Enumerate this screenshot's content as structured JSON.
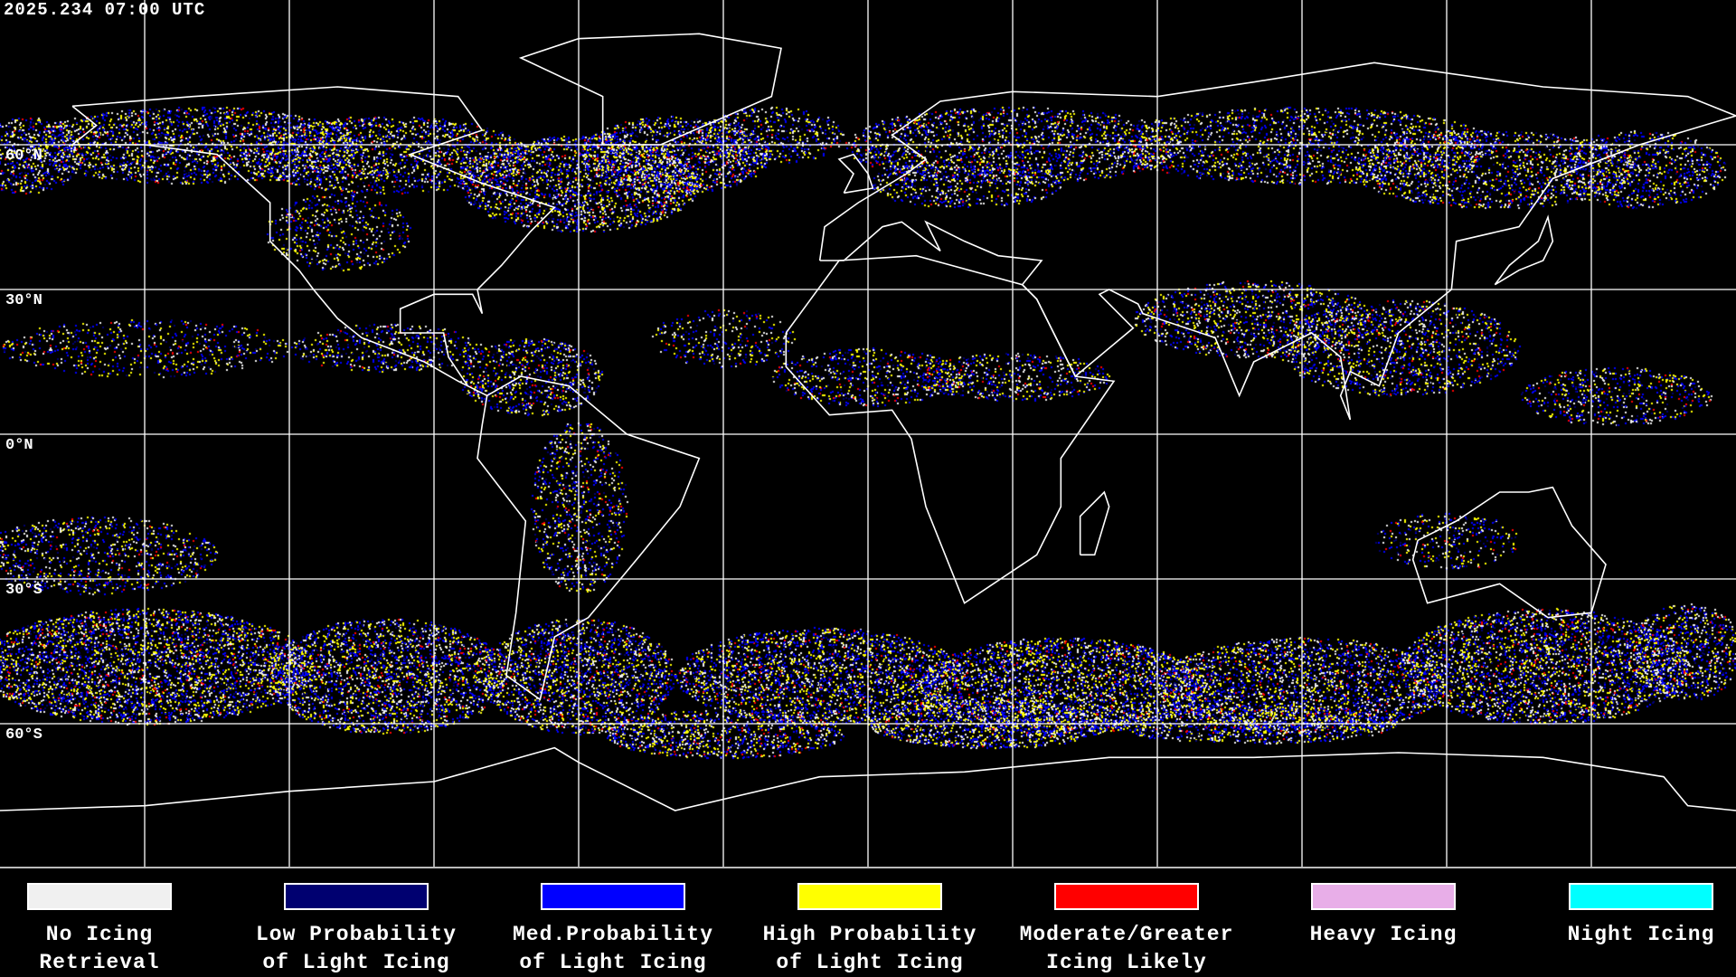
{
  "header": {
    "timestamp": "2025.234 07:00 UTC"
  },
  "map": {
    "projection": "equirectangular",
    "grid_spacing_deg": 30,
    "gridline_color": "#ffffff",
    "coastline_color": "#ffffff",
    "background": "#000000",
    "lat_labels": [
      "60°N",
      "30°N",
      "0°N",
      "30°S",
      "60°S"
    ]
  },
  "legend": {
    "items": [
      {
        "line1": "No Icing",
        "line2": "Retrieval",
        "color": "#f0f0f0"
      },
      {
        "line1": "Low Probability",
        "line2": "of Light Icing",
        "color": "#000070"
      },
      {
        "line1": "Med.Probability",
        "line2": "of Light Icing",
        "color": "#0000ff"
      },
      {
        "line1": "High Probability",
        "line2": "of Light Icing",
        "color": "#ffff00"
      },
      {
        "line1": "Moderate/Greater",
        "line2": "Icing Likely",
        "color": "#ff0000"
      },
      {
        "line1": "Heavy Icing",
        "line2": "",
        "color": "#e8aee8"
      },
      {
        "line1": "Night Icing",
        "line2": "",
        "color": "#00ffff"
      }
    ]
  }
}
